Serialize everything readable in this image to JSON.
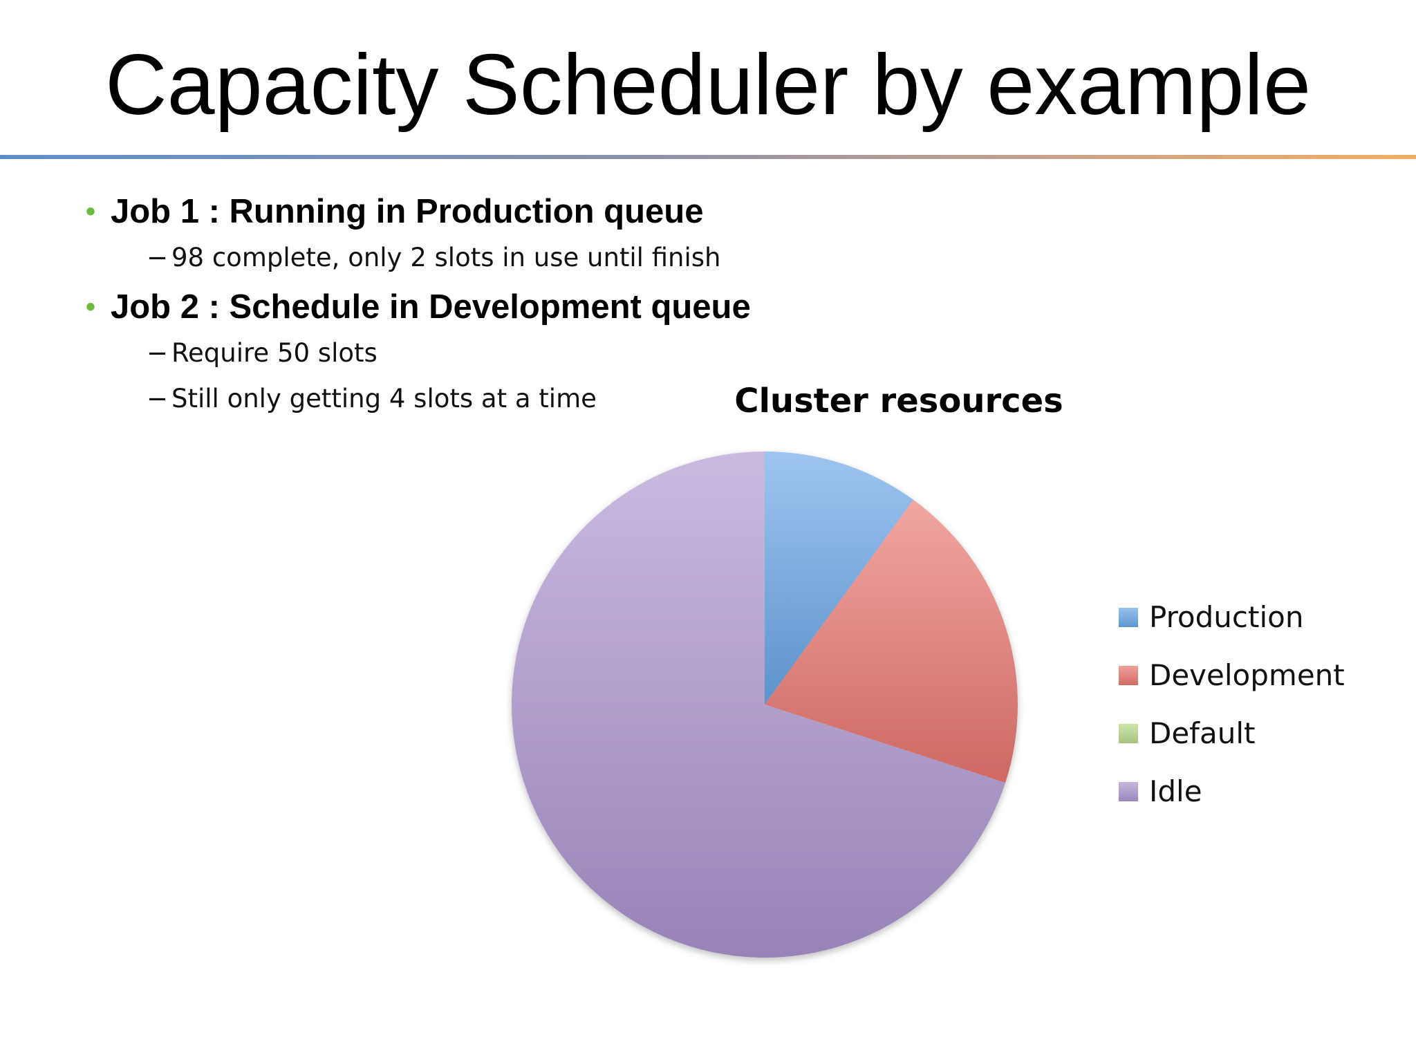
{
  "slide": {
    "title": "Capacity Scheduler by example",
    "bullets": [
      {
        "text": "Job 1 : Running in Production queue",
        "sub": [
          "98 complete, only 2 slots in use until finish"
        ]
      },
      {
        "text": "Job 2 : Schedule in Development queue",
        "sub": [
          "Require 50 slots",
          "Still only getting 4 slots at a time"
        ]
      }
    ],
    "bullet_glyph": "•",
    "dash_glyph": "−",
    "bullet_color": "#6dbb3c"
  },
  "chart_data": {
    "type": "pie",
    "title": "Cluster resources",
    "legend_position": "right",
    "slices": [
      {
        "name": "Production",
        "value": 10,
        "color": "#6aa6e8"
      },
      {
        "name": "Development",
        "value": 20,
        "color": "#ea7670"
      },
      {
        "name": "Default",
        "value": 0,
        "color": "#b8d98a"
      },
      {
        "name": "Idle",
        "value": 70,
        "color": "#ad95d0"
      }
    ]
  }
}
